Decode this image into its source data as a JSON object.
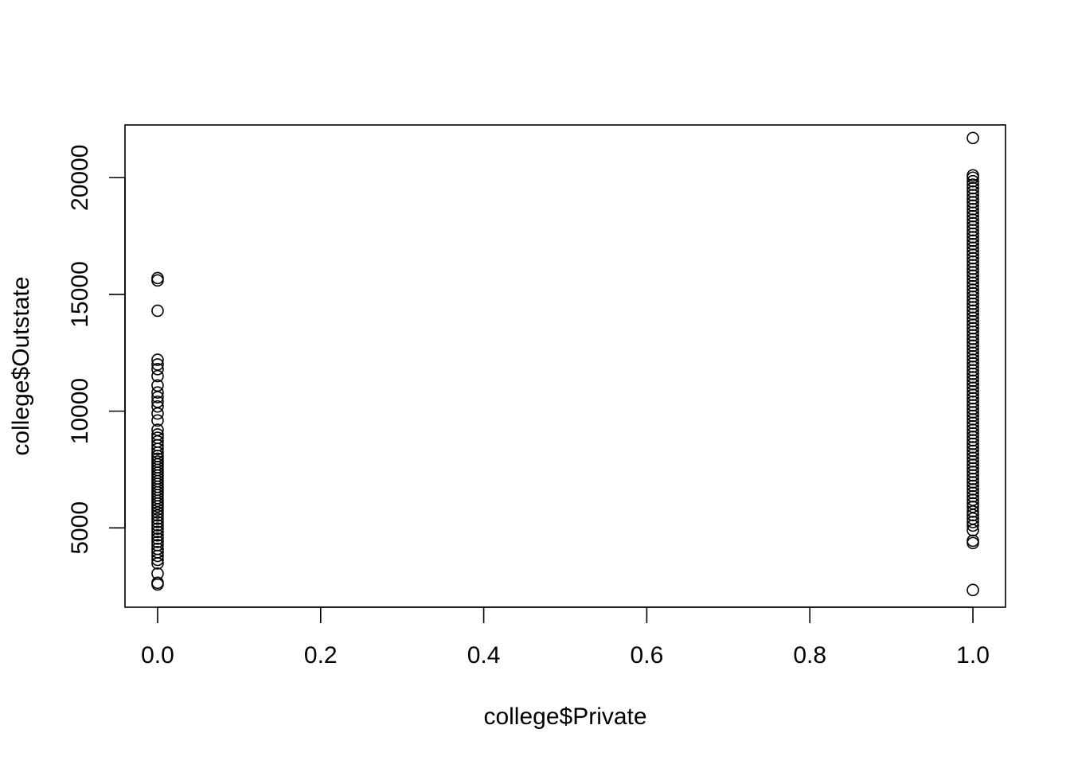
{
  "chart_data": {
    "type": "scatter",
    "title": "",
    "xlabel": "college$Private",
    "ylabel": "college$Outstate",
    "xlim": [
      -0.04,
      1.04
    ],
    "ylim": [
      1602,
      22258
    ],
    "xticks": [
      0.0,
      0.2,
      0.4,
      0.6,
      0.8,
      1.0
    ],
    "xtick_labels": [
      "0.0",
      "0.2",
      "0.4",
      "0.6",
      "0.8",
      "1.0"
    ],
    "yticks": [
      5000,
      10000,
      15000,
      20000
    ],
    "ytick_labels": [
      "5000",
      "10000",
      "15000",
      "20000"
    ],
    "grid": false,
    "series": [
      {
        "x_value": 0,
        "y": [
          2580,
          2650,
          3040,
          3480,
          3630,
          3800,
          3960,
          4100,
          4260,
          4400,
          4540,
          4680,
          4830,
          4970,
          5110,
          5250,
          5390,
          5530,
          5660,
          5790,
          5920,
          6040,
          6160,
          6280,
          6400,
          6520,
          6640,
          6760,
          6880,
          7000,
          7120,
          7240,
          7360,
          7480,
          7600,
          7720,
          7840,
          7960,
          8080,
          8220,
          8380,
          8540,
          8700,
          8860,
          9000,
          9200,
          9600,
          9900,
          10200,
          10400,
          10600,
          10800,
          11100,
          11500,
          11800,
          12000,
          12200,
          14300,
          15600,
          15700
        ]
      },
      {
        "x_value": 1,
        "y": [
          2340,
          4350,
          4450,
          4900,
          5100,
          5250,
          5400,
          5550,
          5700,
          5900,
          6050,
          6200,
          6350,
          6500,
          6650,
          6800,
          6950,
          7100,
          7250,
          7400,
          7550,
          7700,
          7850,
          8000,
          8150,
          8300,
          8450,
          8600,
          8750,
          8900,
          9050,
          9200,
          9350,
          9500,
          9650,
          9800,
          9950,
          10100,
          10250,
          10400,
          10550,
          10700,
          10850,
          11000,
          11150,
          11300,
          11450,
          11600,
          11750,
          11900,
          12050,
          12200,
          12350,
          12500,
          12650,
          12800,
          12950,
          13100,
          13250,
          13400,
          13550,
          13700,
          13850,
          14000,
          14150,
          14300,
          14450,
          14600,
          14750,
          14900,
          15050,
          15200,
          15350,
          15500,
          15650,
          15800,
          15950,
          16100,
          16250,
          16400,
          16550,
          16700,
          16850,
          17000,
          17150,
          17300,
          17450,
          17600,
          17750,
          17900,
          18050,
          18200,
          18350,
          18500,
          18650,
          18800,
          18950,
          19100,
          19250,
          19400,
          19550,
          19700,
          19850,
          20000,
          20100,
          21700
        ]
      }
    ]
  }
}
